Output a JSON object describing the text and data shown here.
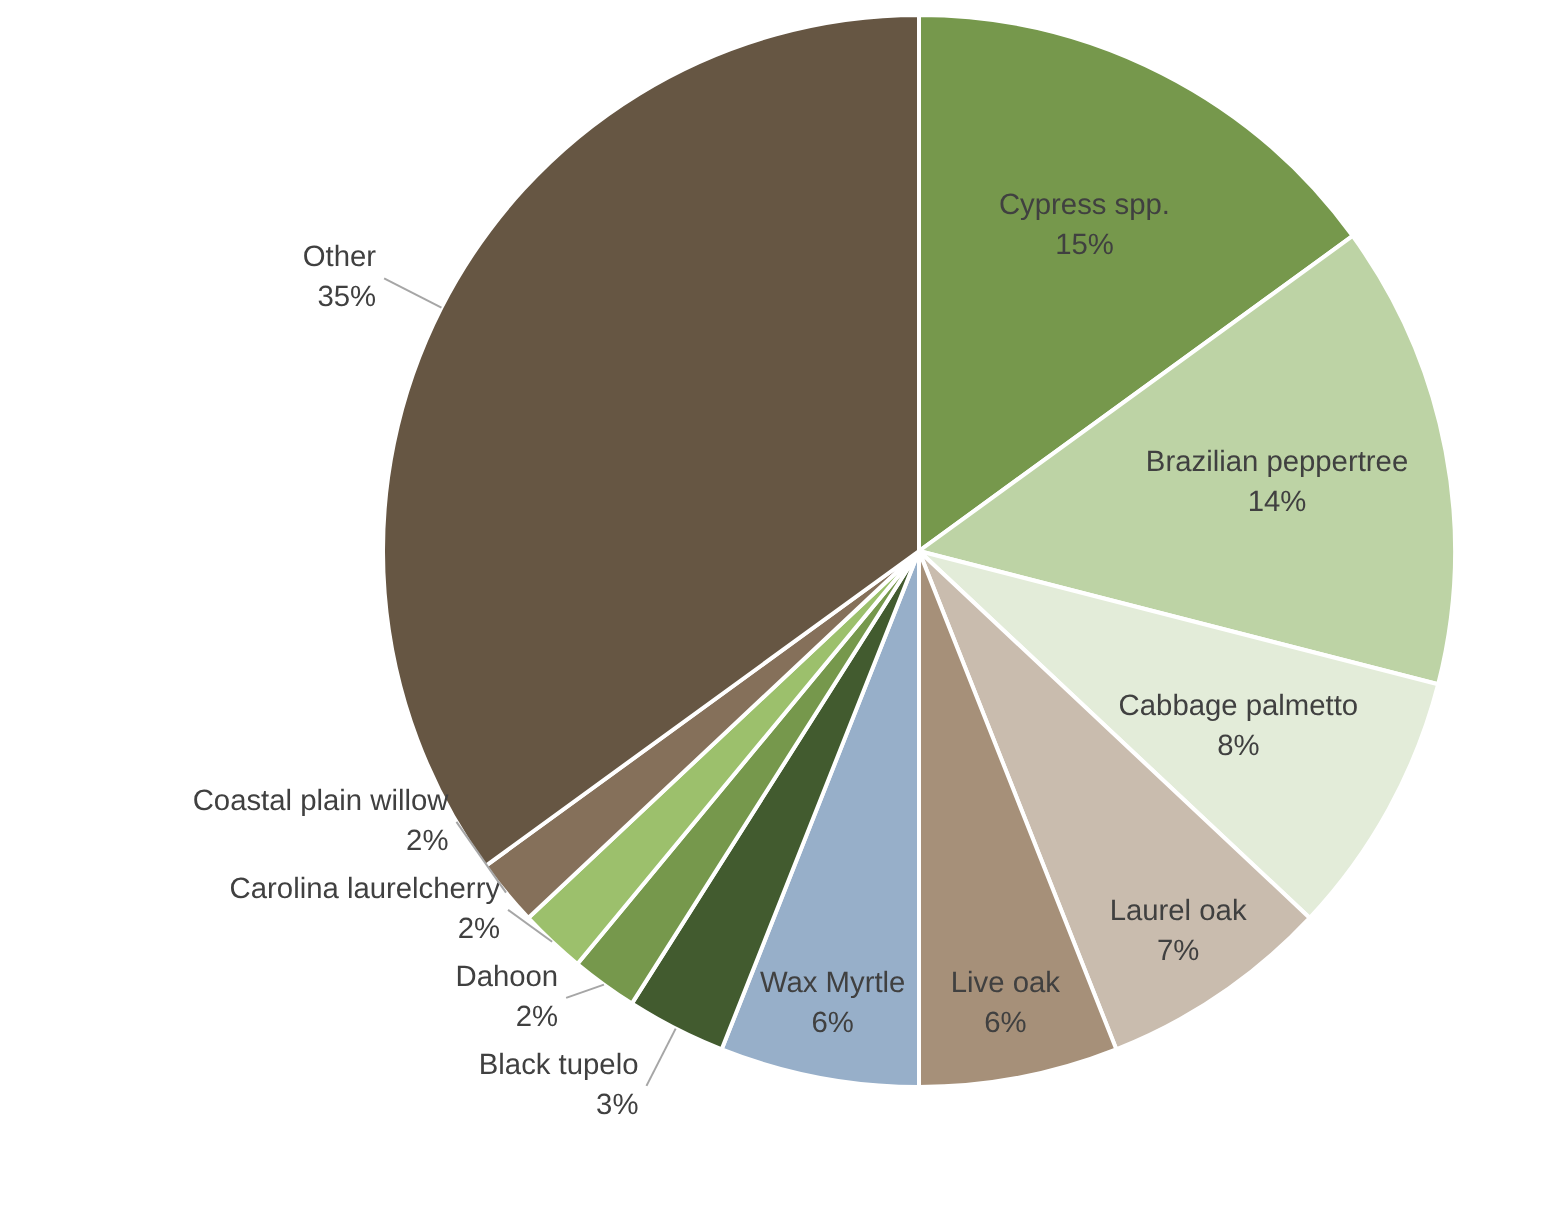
{
  "chart_data": {
    "type": "pie",
    "categories": [
      "Cypress spp.",
      "Brazilian peppertree",
      "Cabbage palmetto",
      "Laurel oak",
      "Live oak",
      "Wax Myrtle",
      "Black tupelo",
      "Dahoon",
      "Carolina laurelcherry",
      "Coastal plain willow",
      "Other"
    ],
    "values": [
      15,
      14,
      8,
      7,
      6,
      6,
      3,
      2,
      2,
      2,
      35
    ],
    "value_labels": [
      "15%",
      "14%",
      "8%",
      "7%",
      "6%",
      "6%",
      "3%",
      "2%",
      "2%",
      "2%",
      "35%"
    ],
    "colors": [
      "#76984c",
      "#bdd3a5",
      "#e3ecd9",
      "#c9bcae",
      "#a69079",
      "#97afc9",
      "#425b2f",
      "#76984c",
      "#9cc06c",
      "#85705a",
      "#665643"
    ]
  }
}
